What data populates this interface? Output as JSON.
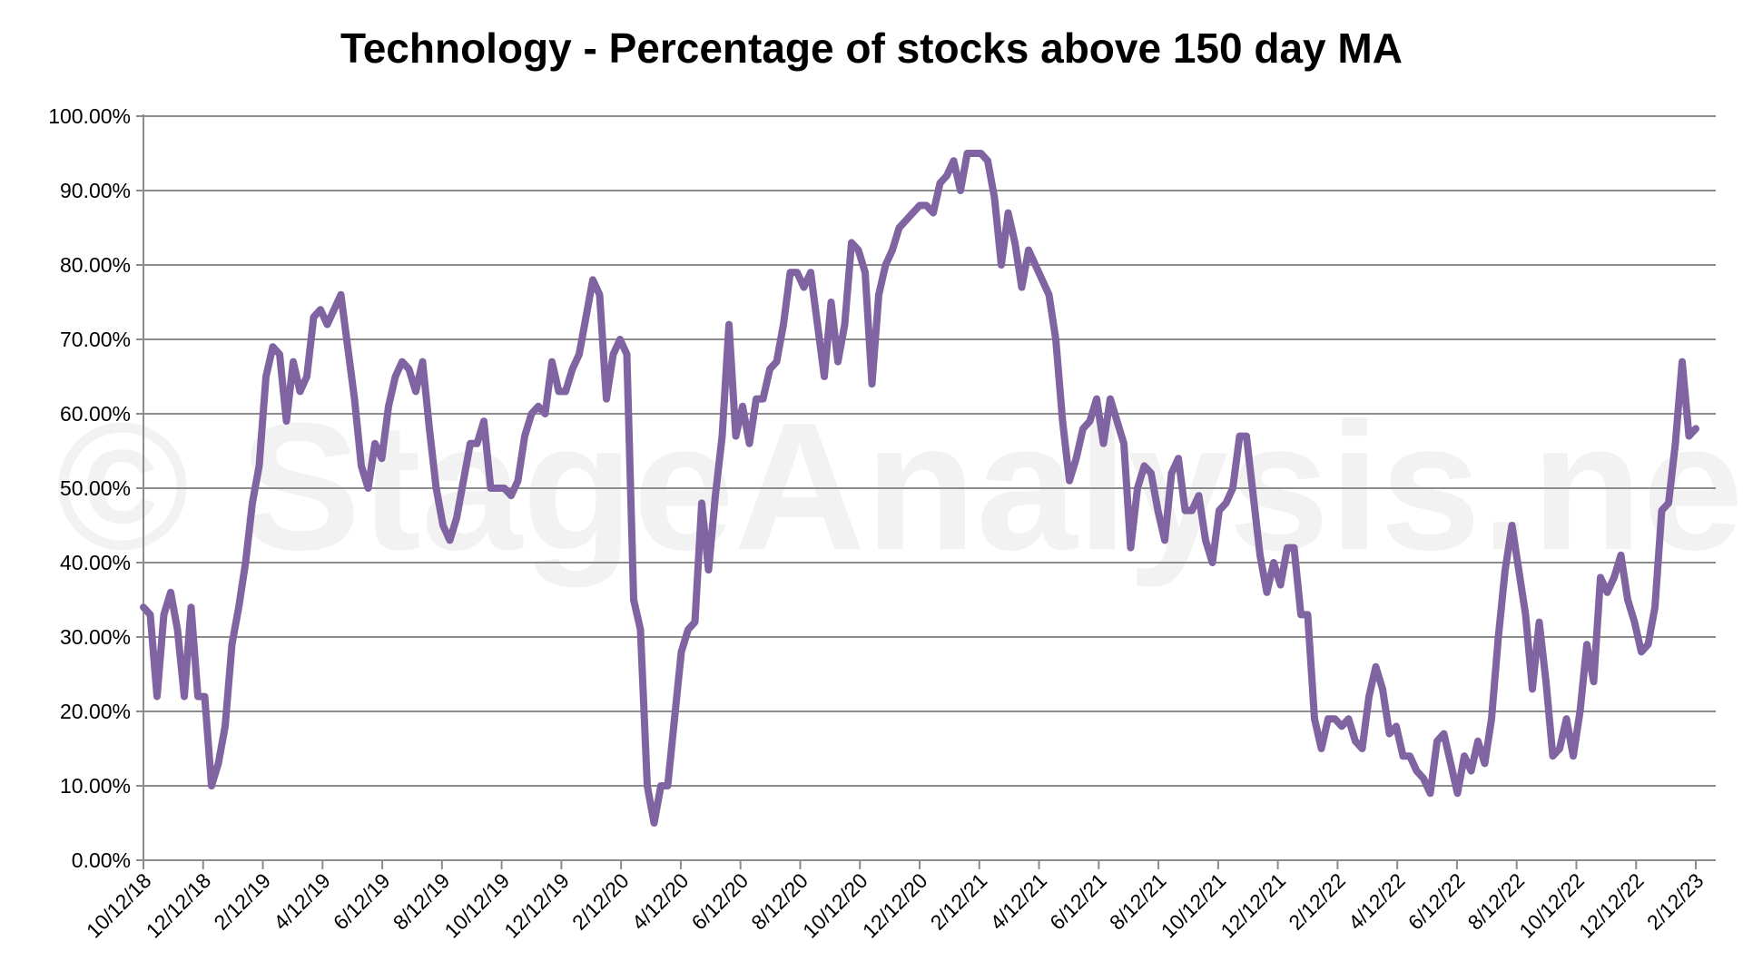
{
  "chart_data": {
    "type": "line",
    "title": "Technology - Percentage of stocks above 150 day MA",
    "watermark": "© StageAnalysis.net",
    "xlabel": "",
    "ylabel": "",
    "ylim": [
      0,
      100
    ],
    "y_ticks": [
      "0.00%",
      "10.00%",
      "20.00%",
      "30.00%",
      "40.00%",
      "50.00%",
      "60.00%",
      "70.00%",
      "80.00%",
      "90.00%",
      "100.00%"
    ],
    "x_ticks": [
      "10/12/18",
      "12/12/18",
      "2/12/19",
      "4/12/19",
      "6/12/19",
      "8/12/19",
      "10/12/19",
      "12/12/19",
      "2/12/20",
      "4/12/20",
      "6/12/20",
      "8/12/20",
      "10/12/20",
      "12/12/20",
      "2/12/21",
      "4/12/21",
      "6/12/21",
      "8/12/21",
      "10/12/21",
      "12/12/21",
      "2/12/22",
      "4/12/22",
      "6/12/22",
      "8/12/22",
      "10/12/22",
      "12/12/22",
      "2/12/23"
    ],
    "grid": true,
    "legend": "none",
    "line_color": "#8064A2",
    "series": [
      {
        "values": [
          34,
          33,
          22,
          33,
          36,
          31,
          22,
          34,
          22,
          22,
          10,
          13,
          18,
          29,
          34,
          40,
          48,
          53,
          65,
          69,
          68,
          59,
          67,
          63,
          65,
          73,
          74,
          72,
          74,
          76,
          69,
          62,
          53,
          50,
          56,
          54,
          61,
          65,
          67,
          66,
          63,
          67,
          58,
          50,
          45,
          43,
          46,
          51,
          56,
          56,
          59,
          50,
          50,
          50,
          49,
          51,
          57,
          60,
          61,
          60,
          67,
          63,
          63,
          66,
          68,
          73,
          78,
          76,
          62,
          68,
          70,
          68,
          35,
          31,
          10,
          5,
          10,
          10,
          19,
          28,
          31,
          32,
          48,
          39,
          49,
          57,
          72,
          57,
          61,
          56,
          62,
          62,
          66,
          67,
          72,
          79,
          79,
          77,
          79,
          72,
          65,
          75,
          67,
          72,
          83,
          82,
          79,
          64,
          76,
          80,
          82,
          85,
          86,
          87,
          88,
          88,
          87,
          91,
          92,
          94,
          90,
          95,
          95,
          95,
          94,
          89,
          80,
          87,
          83,
          77,
          82,
          80,
          78,
          76,
          70,
          59,
          51,
          54,
          58,
          59,
          62,
          56,
          62,
          59,
          56,
          42,
          50,
          53,
          52,
          47,
          43,
          52,
          54,
          47,
          47,
          49,
          43,
          40,
          47,
          48,
          50,
          57,
          57,
          49,
          41,
          36,
          40,
          37,
          42,
          42,
          33,
          33,
          19,
          15,
          19,
          19,
          18,
          19,
          16,
          15,
          22,
          26,
          23,
          17,
          18,
          14,
          14,
          12,
          11,
          9,
          16,
          17,
          13,
          9,
          14,
          12,
          16,
          13,
          19,
          30,
          39,
          45,
          39,
          33,
          23,
          32,
          24,
          14,
          15,
          19,
          14,
          20,
          29,
          24,
          38,
          36,
          38,
          41,
          35,
          32,
          28,
          29,
          34,
          47,
          48,
          56,
          67,
          57,
          58
        ]
      }
    ]
  }
}
